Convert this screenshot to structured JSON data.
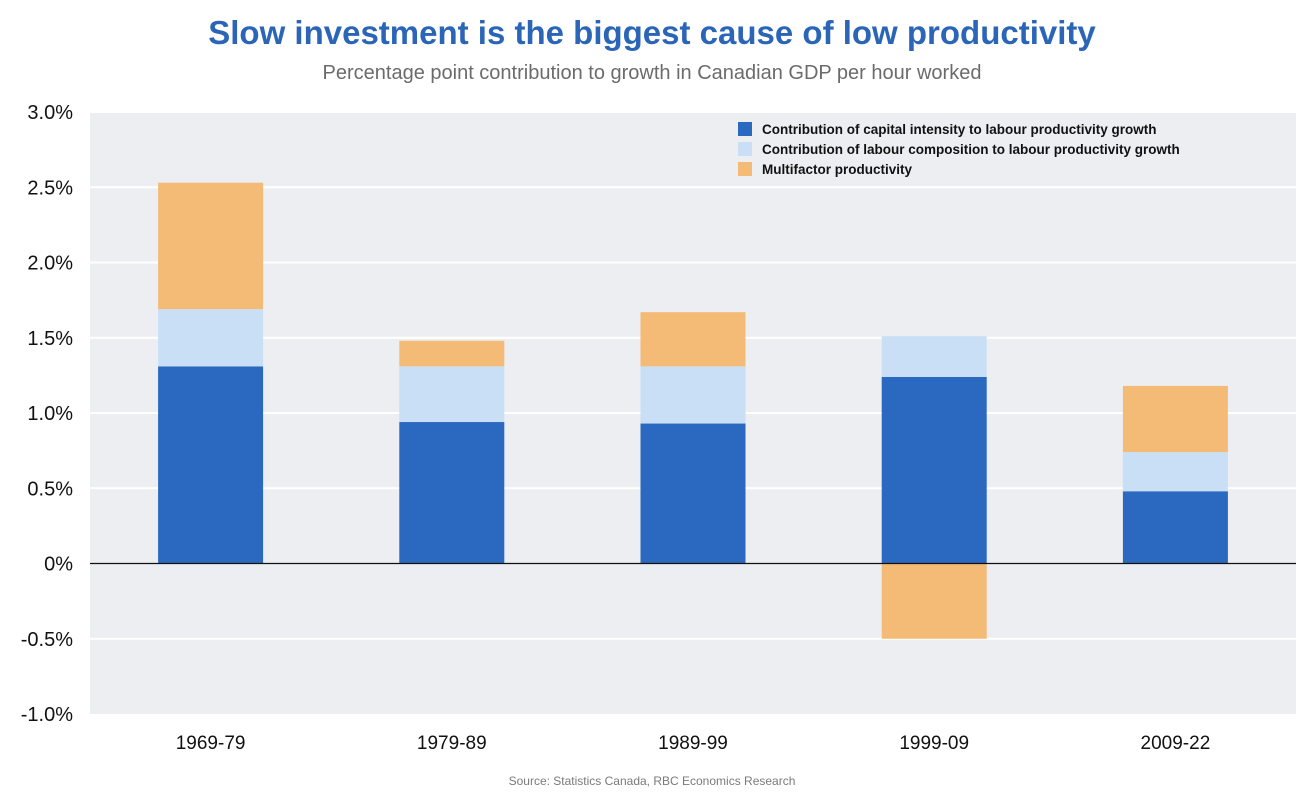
{
  "colors": {
    "capital": "#2b68bf",
    "labour": "#c8dff6",
    "mfp": "#f3bb75",
    "plot_bg": "#eceef1",
    "title": "#2b65b8"
  },
  "chart_data": {
    "type": "bar",
    "stacked": true,
    "title": "Slow investment is the biggest cause of low productivity",
    "subtitle": "Percentage point contribution to growth in Canadian GDP per hour worked",
    "source": "Source: Statistics Canada, RBC Economics Research",
    "xlabel": "",
    "ylabel": "",
    "categories": [
      "1969-79",
      "1979-89",
      "1989-99",
      "1999-09",
      "2009-22"
    ],
    "series": [
      {
        "name": "Contribution of capital intensity to labour productivity growth",
        "color": "#2b68bf",
        "values": [
          1.31,
          0.94,
          0.93,
          1.24,
          0.48
        ]
      },
      {
        "name": "Contribution of labour composition to labour productivity growth",
        "color": "#c8dff6",
        "values": [
          0.38,
          0.37,
          0.38,
          0.27,
          0.26
        ]
      },
      {
        "name": "Multifactor productivity",
        "color": "#f3bb75",
        "values": [
          0.84,
          0.17,
          0.36,
          -0.5,
          0.44
        ]
      }
    ],
    "ylim": [
      -1.0,
      3.0
    ],
    "yticks": [
      3.0,
      2.5,
      2.0,
      1.5,
      1.0,
      0.5,
      0,
      -0.5,
      -1.0
    ],
    "ytick_labels": [
      "3.0%",
      "2.5%",
      "2.0%",
      "1.5%",
      "1.0%",
      "0.5%",
      "0%",
      "-0.5%",
      "-1.0%"
    ],
    "grid": true,
    "legend_position": "top-right"
  }
}
